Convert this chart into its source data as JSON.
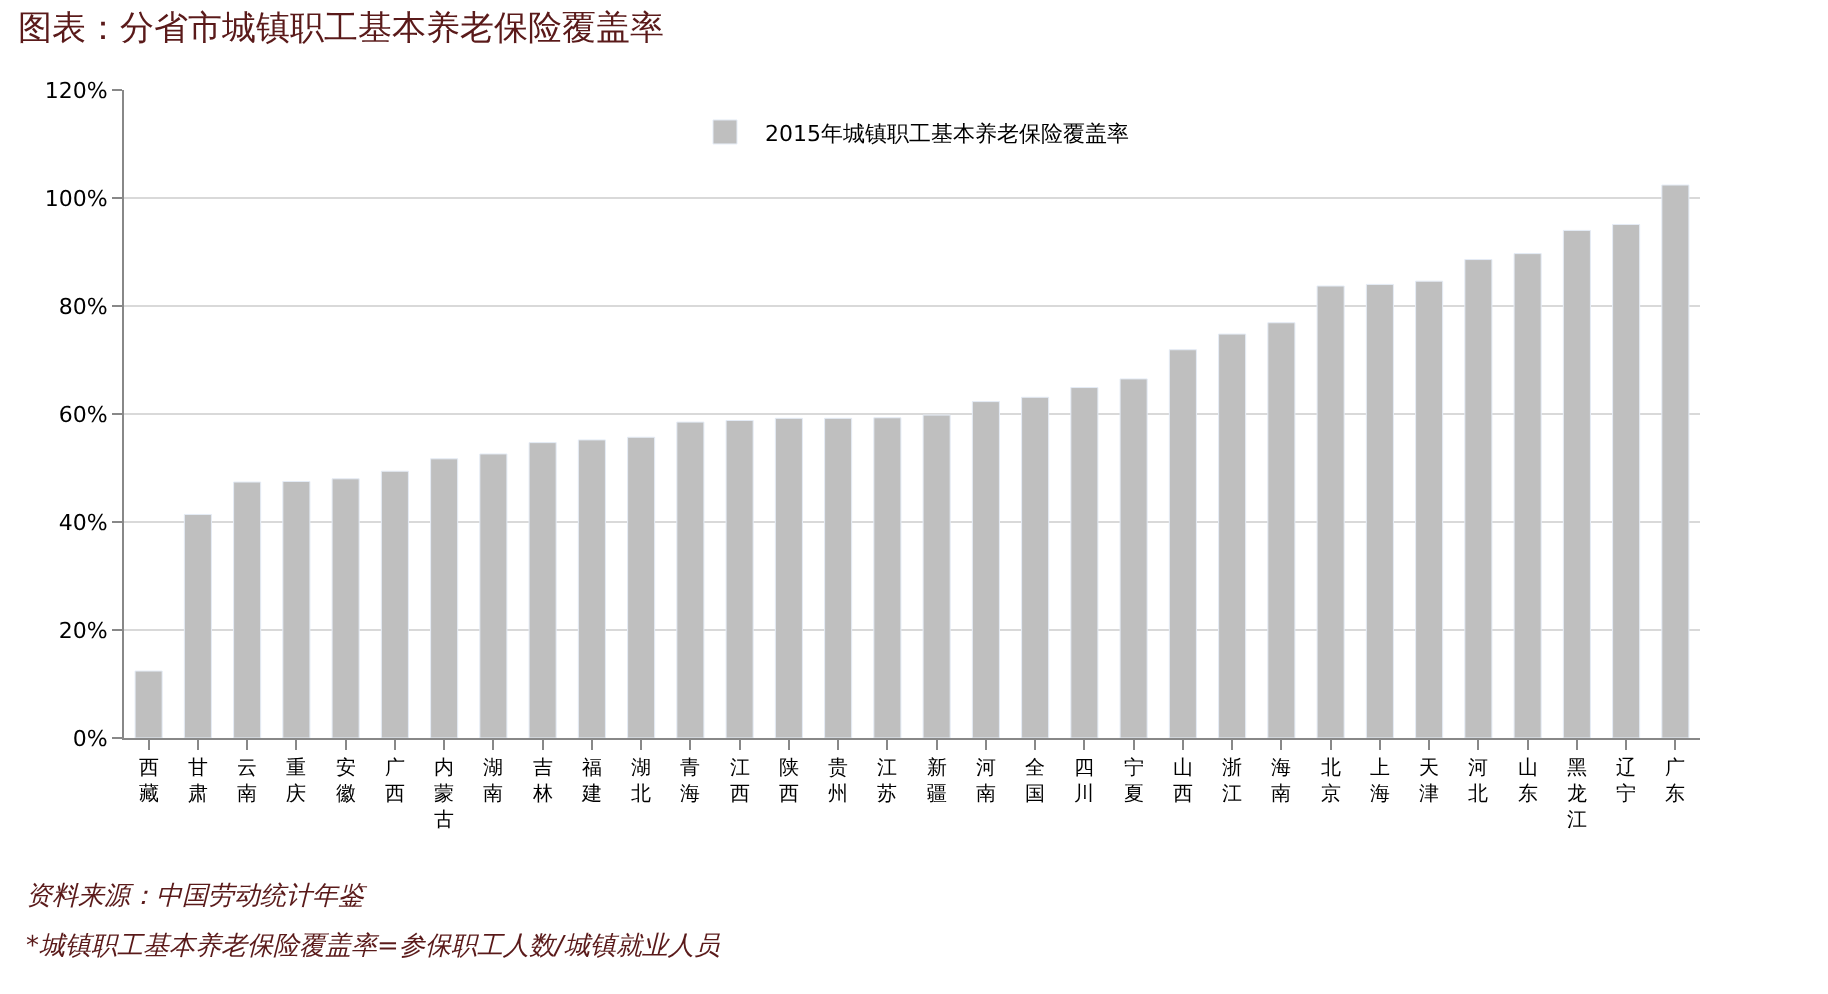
{
  "chart_data": {
    "type": "bar",
    "title": "图表：分省市城镇职工基本养老保险覆盖率",
    "categories": [
      "西藏",
      "甘肃",
      "云南",
      "重庆",
      "安徽",
      "广西",
      "内蒙古",
      "湖南",
      "吉林",
      "福建",
      "湖北",
      "青海",
      "江西",
      "陕西",
      "贵州",
      "江苏",
      "新疆",
      "河南",
      "全国",
      "四川",
      "宁夏",
      "山西",
      "浙江",
      "海南",
      "北京",
      "上海",
      "天津",
      "河北",
      "山东",
      "黑龙江",
      "辽宁",
      "广东"
    ],
    "series": [
      {
        "name": "2015年城镇职工基本养老保险覆盖率",
        "color": "#bfbfbf",
        "values": [
          12.4,
          41.4,
          47.4,
          47.5,
          48.0,
          49.4,
          51.7,
          52.6,
          54.7,
          55.2,
          55.7,
          58.5,
          58.8,
          59.2,
          59.2,
          59.3,
          59.8,
          62.3,
          63.1,
          64.9,
          66.5,
          71.9,
          74.8,
          76.9,
          83.7,
          84.0,
          84.6,
          88.6,
          89.7,
          94.0,
          95.1,
          102.4
        ]
      }
    ],
    "ylim": [
      0,
      120
    ],
    "yticks": [
      {
        "value": 0,
        "label": "0%"
      },
      {
        "value": 20,
        "label": "20%"
      },
      {
        "value": 40,
        "label": "40%"
      },
      {
        "value": 60,
        "label": "60%"
      },
      {
        "value": 80,
        "label": "80%"
      },
      {
        "value": 100,
        "label": "100%"
      },
      {
        "value": 120,
        "label": "120%"
      }
    ],
    "grid": "y",
    "legend": "top",
    "annotations": [
      "资料来源：中国劳动统计年鉴",
      "*城镇职工基本养老保险覆盖率=参保职工人数/城镇就业人员"
    ]
  }
}
